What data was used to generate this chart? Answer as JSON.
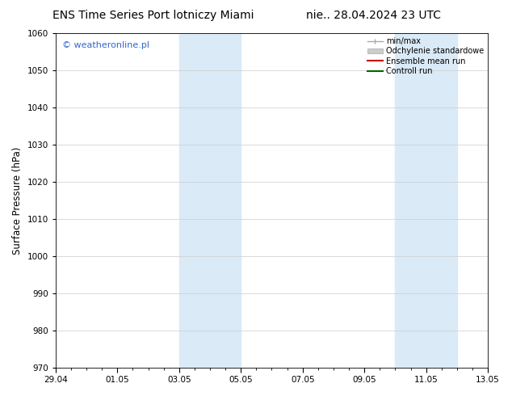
{
  "title_left": "ENS Time Series Port lotniczy Miami",
  "title_right": "nie.. 28.04.2024 23 UTC",
  "ylabel": "Surface Pressure (hPa)",
  "ylim": [
    970,
    1060
  ],
  "yticks": [
    970,
    980,
    990,
    1000,
    1010,
    1020,
    1030,
    1040,
    1050,
    1060
  ],
  "xtick_labels": [
    "29.04",
    "01.05",
    "03.05",
    "05.05",
    "07.05",
    "09.05",
    "11.05",
    "13.05"
  ],
  "xtick_positions": [
    0,
    2,
    4,
    6,
    8,
    10,
    12,
    14
  ],
  "x_start": 0,
  "x_end": 14,
  "shaded_bands": [
    {
      "x_start": 4.0,
      "x_end": 6.0
    },
    {
      "x_start": 11.0,
      "x_end": 13.0
    }
  ],
  "shaded_color": "#daeaf7",
  "legend_entries": [
    {
      "label": "min/max",
      "color": "#aaaaaa",
      "type": "errorbar"
    },
    {
      "label": "Odchylenie standardowe",
      "color": "#cccccc",
      "type": "band"
    },
    {
      "label": "Ensemble mean run",
      "color": "#cc0000",
      "type": "line"
    },
    {
      "label": "Controll run",
      "color": "#006600",
      "type": "line"
    }
  ],
  "watermark": "© weatheronline.pl",
  "watermark_color": "#3366cc",
  "background_color": "#ffffff",
  "plot_bg_color": "#ffffff",
  "grid_color": "#cccccc",
  "title_fontsize": 10,
  "tick_fontsize": 7.5,
  "ylabel_fontsize": 8.5,
  "legend_fontsize": 7,
  "watermark_fontsize": 8
}
